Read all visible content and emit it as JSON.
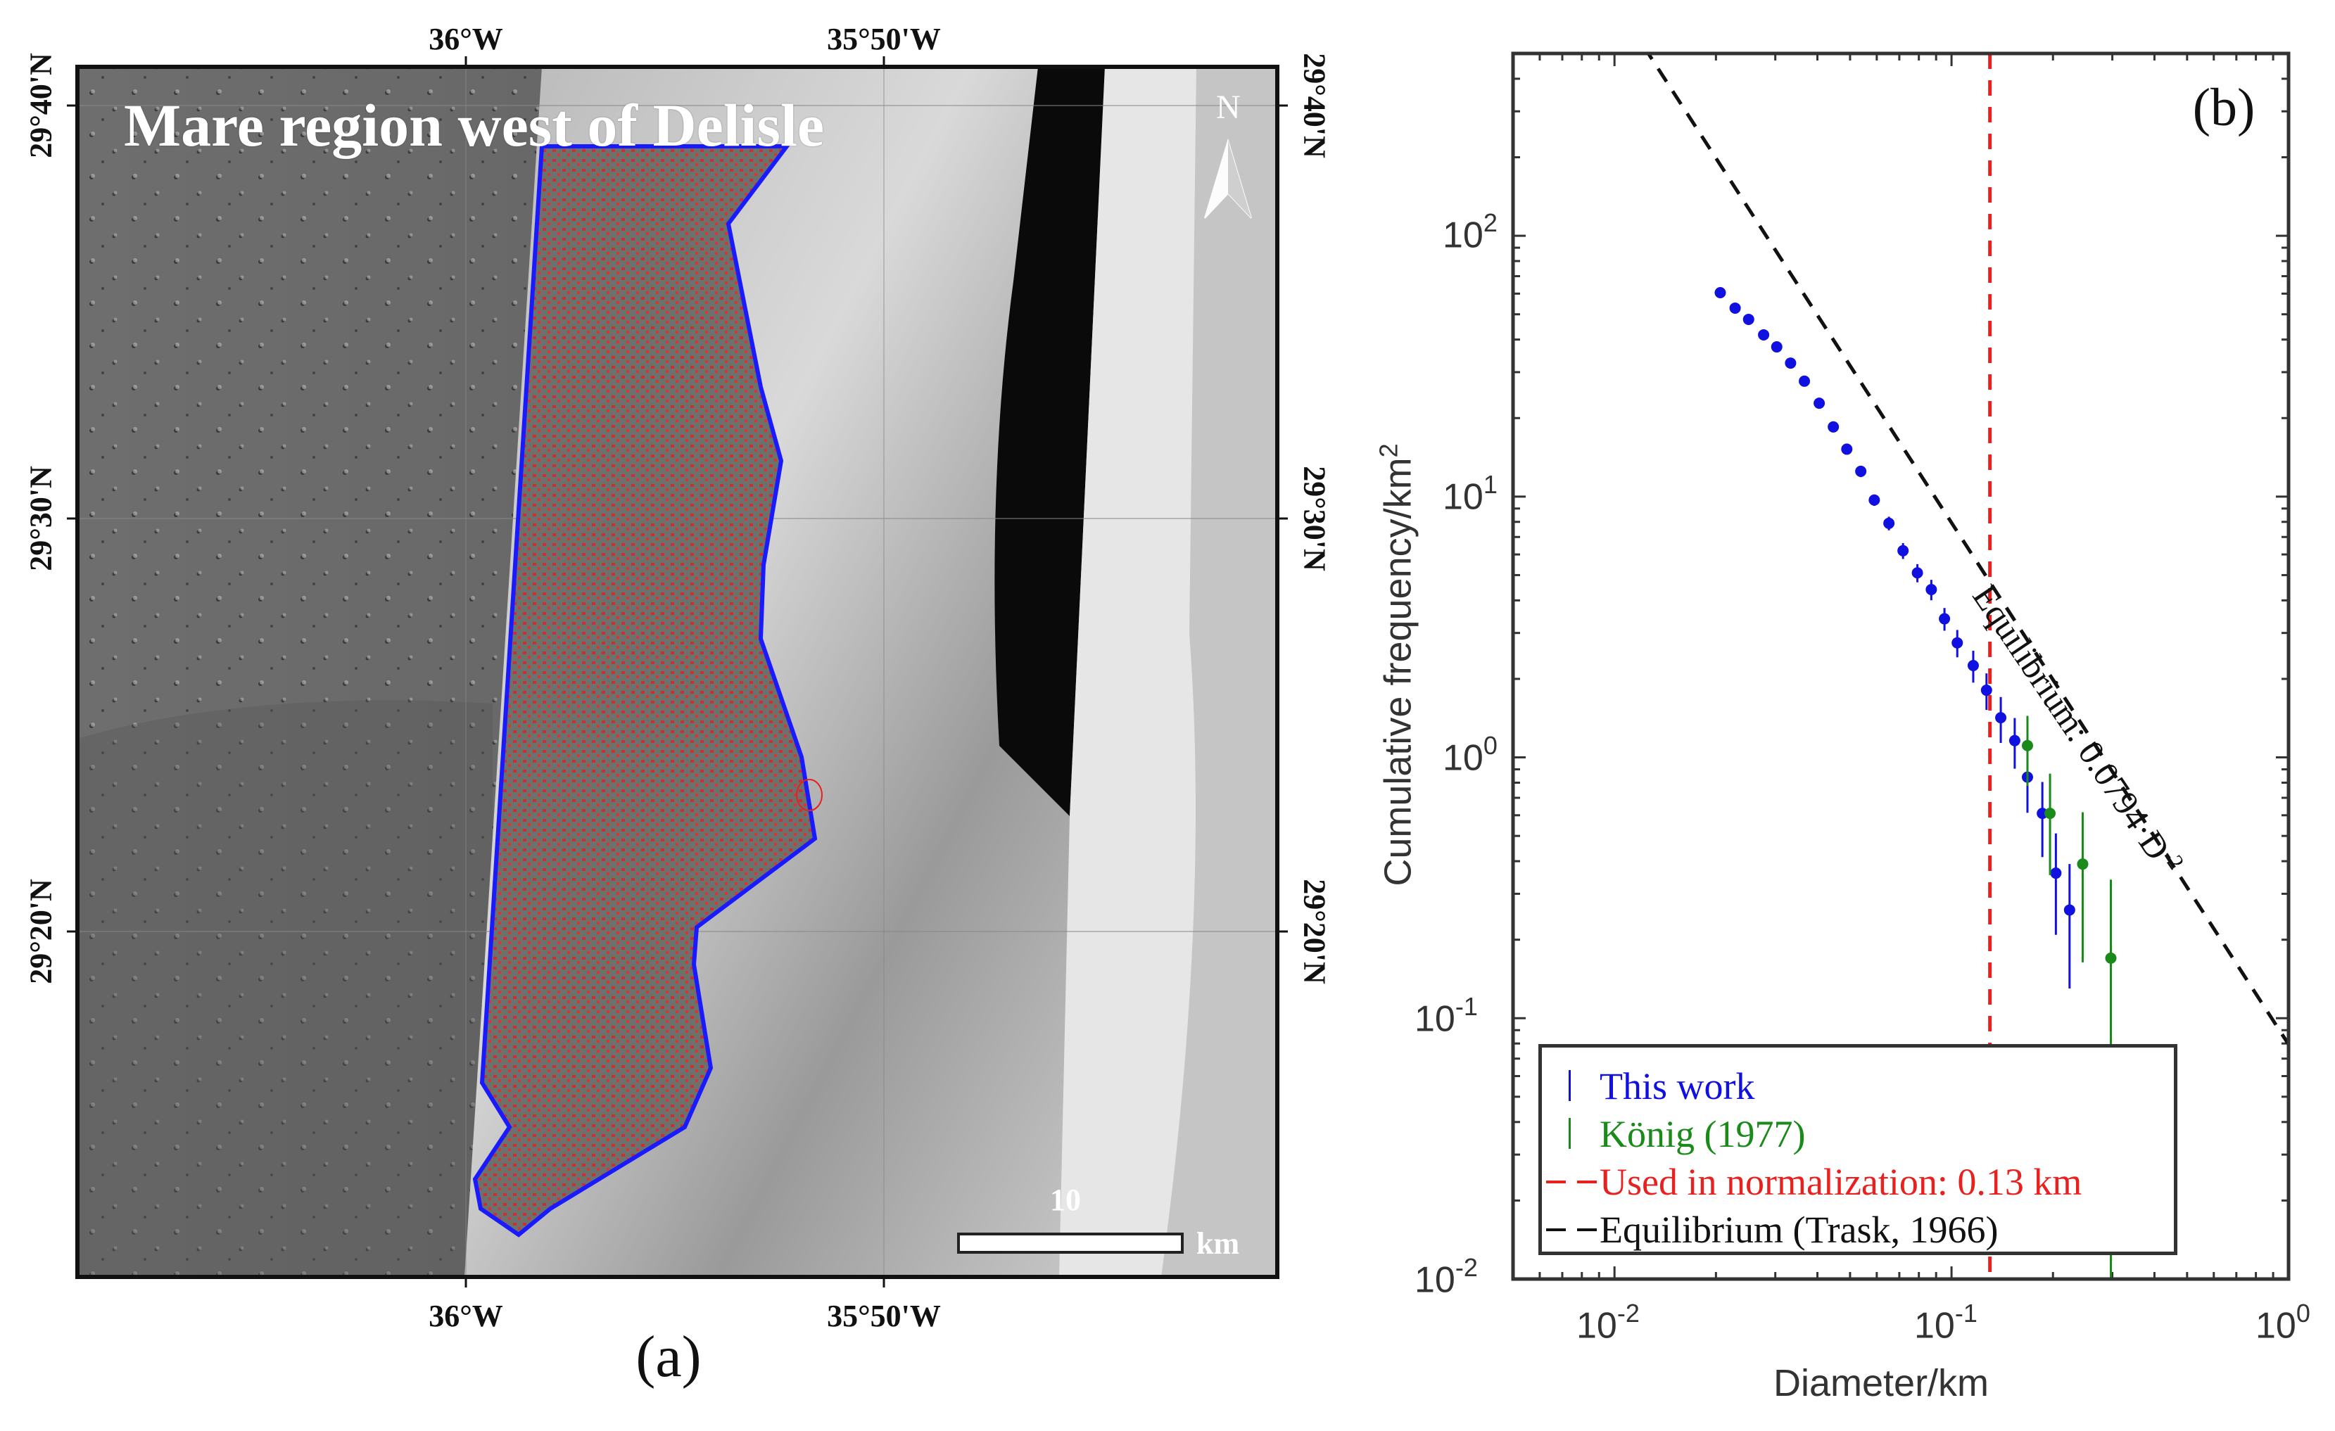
{
  "figure": {
    "panel_a": {
      "label": "(a)",
      "title": "Mare region west of Delisle",
      "lon_labels_top": [
        "36°W",
        "35°50'W"
      ],
      "lon_labels_bottom": [
        "36°W",
        "35°50'W"
      ],
      "lat_labels_left": [
        "29°40'N",
        "29°30'N",
        "29°20'N"
      ],
      "lat_labels_right": [
        "29°40'N",
        "29°30'N",
        "29°20'N"
      ],
      "north_arrow": "N",
      "scale_bar": {
        "value": "10",
        "unit": "km"
      },
      "colors": {
        "outline": "#1a1aff",
        "craters": "#e8201e"
      }
    },
    "panel_b": {
      "label": "(b)",
      "equilibrium_annotation": "Equilibrium: 0.0794·D",
      "equilibrium_exponent": "-2"
    }
  },
  "chart_data": {
    "type": "scatter",
    "title": "",
    "panel_label": "(b)",
    "xlabel": "Diameter/km",
    "ylabel": "Cumulative frequency/km",
    "ylabel_superscript": "2",
    "xscale": "log",
    "yscale": "log",
    "xlim": [
      0.005,
      1
    ],
    "ylim": [
      0.01,
      500
    ],
    "x_ticks": [
      {
        "base": "10",
        "exp": "-2"
      },
      {
        "base": "10",
        "exp": "-1"
      },
      {
        "base": "10",
        "exp": "0"
      }
    ],
    "y_ticks": [
      {
        "base": "10",
        "exp": "2"
      },
      {
        "base": "10",
        "exp": "1"
      },
      {
        "base": "10",
        "exp": "0"
      },
      {
        "base": "10",
        "exp": "-1"
      },
      {
        "base": "10",
        "exp": "-2"
      }
    ],
    "grid": false,
    "legend_position": "lower left",
    "legend": [
      {
        "label": "This work",
        "color": "#1010e0",
        "style": "errorbar"
      },
      {
        "label": "König (1977)",
        "color": "#1a8a1a",
        "style": "errorbar"
      },
      {
        "label": "Used in normalization: 0.13 km",
        "color": "#e8201e",
        "style": "dashed"
      },
      {
        "label": "Equilibrium (Trask, 1966)",
        "color": "#111111",
        "style": "dashed"
      }
    ],
    "series": [
      {
        "name": "This work",
        "color": "#1010e0",
        "x": [
          0.0206,
          0.0228,
          0.025,
          0.0277,
          0.0303,
          0.0333,
          0.0366,
          0.0405,
          0.0446,
          0.0489,
          0.0538,
          0.059,
          0.0652,
          0.0718,
          0.0792,
          0.0871,
          0.0953,
          0.104,
          0.116,
          0.127,
          0.14,
          0.154,
          0.168,
          0.186,
          0.204,
          0.224
        ],
        "y": [
          60.5,
          52.8,
          47.8,
          41.7,
          37.5,
          32.5,
          27.7,
          22.8,
          18.5,
          15.2,
          12.5,
          9.7,
          7.9,
          6.2,
          5.1,
          4.4,
          3.4,
          2.75,
          2.25,
          1.81,
          1.42,
          1.16,
          0.84,
          0.61,
          0.36,
          0.26
        ],
        "err_rel": [
          0.02,
          0.02,
          0.02,
          0.02,
          0.03,
          0.03,
          0.03,
          0.03,
          0.04,
          0.04,
          0.05,
          0.05,
          0.06,
          0.07,
          0.08,
          0.09,
          0.1,
          0.12,
          0.14,
          0.16,
          0.2,
          0.22,
          0.27,
          0.32,
          0.42,
          0.5
        ]
      },
      {
        "name": "König (1977)",
        "color": "#1a8a1a",
        "x": [
          0.168,
          0.196,
          0.245,
          0.297
        ],
        "y": [
          1.11,
          0.61,
          0.39,
          0.17
        ],
        "err_rel": [
          0.3,
          0.42,
          0.58,
          1.0
        ]
      }
    ],
    "reference_lines": [
      {
        "name": "Used in normalization: 0.13 km",
        "type": "vertical",
        "x": 0.13,
        "color": "#e8201e",
        "style": "dashed"
      },
      {
        "name": "Equilibrium (Trask, 1966)",
        "type": "power_law",
        "coefficient": 0.0794,
        "exponent": -2,
        "color": "#111111",
        "style": "dashed"
      }
    ],
    "annotations": [
      "Equilibrium: 0.0794·D^-2"
    ]
  }
}
